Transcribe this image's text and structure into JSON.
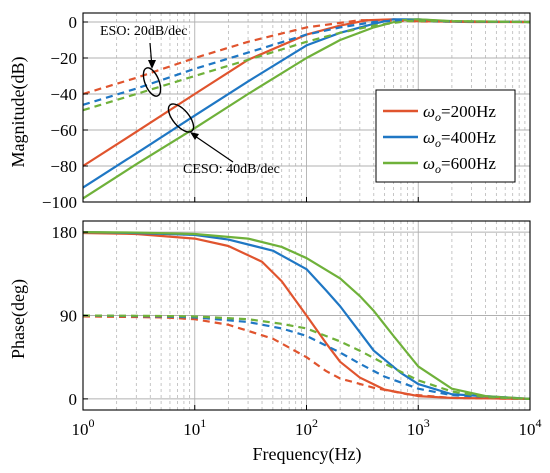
{
  "chart_data": [
    {
      "type": "line",
      "panel": "magnitude",
      "ylabel": "Magnitude(dB)",
      "xscale": "log",
      "xlim": [
        1,
        10000
      ],
      "ylim": [
        -100,
        5
      ],
      "yticks": [
        0,
        -20,
        -40,
        -60,
        -80,
        -100
      ],
      "ytick_labels": [
        "0",
        "−20",
        "−40",
        "−60",
        "−80",
        "−100"
      ],
      "grid": true,
      "legend_position": "center-right",
      "series": [
        {
          "name": "ωo=200Hz",
          "style": "solid",
          "color": "#e0542e",
          "points": [
            [
              1,
              -80
            ],
            [
              3,
              -61
            ],
            [
              10,
              -40
            ],
            [
              30,
              -21
            ],
            [
              100,
              -7
            ],
            [
              200,
              -2
            ],
            [
              350,
              1
            ],
            [
              600,
              1.5
            ],
            [
              1000,
              0.5
            ],
            [
              3000,
              0
            ],
            [
              10000,
              0
            ]
          ]
        },
        {
          "name": "ωo=400Hz",
          "style": "solid",
          "color": "#1f77c4",
          "points": [
            [
              1,
              -92
            ],
            [
              3,
              -73
            ],
            [
              10,
              -52
            ],
            [
              30,
              -33
            ],
            [
              100,
              -13
            ],
            [
              200,
              -6
            ],
            [
              400,
              -1
            ],
            [
              600,
              1.5
            ],
            [
              1000,
              1.5
            ],
            [
              2000,
              0.3
            ],
            [
              10000,
              0
            ]
          ]
        },
        {
          "name": "ωo=600Hz",
          "style": "solid",
          "color": "#6fb13a",
          "points": [
            [
              1,
              -98
            ],
            [
              3,
              -79
            ],
            [
              10,
              -59
            ],
            [
              30,
              -40
            ],
            [
              100,
              -20
            ],
            [
              200,
              -10
            ],
            [
              400,
              -3
            ],
            [
              700,
              1
            ],
            [
              1000,
              1.5
            ],
            [
              2000,
              0.5
            ],
            [
              10000,
              0
            ]
          ]
        },
        {
          "name": "ESO ωo=200Hz",
          "style": "dashed",
          "color": "#e0542e",
          "points": [
            [
              1,
              -40
            ],
            [
              3,
              -31
            ],
            [
              10,
              -20
            ],
            [
              30,
              -11
            ],
            [
              100,
              -3
            ],
            [
              200,
              -0.5
            ],
            [
              300,
              1
            ],
            [
              500,
              1
            ],
            [
              1000,
              0.3
            ],
            [
              10000,
              0
            ]
          ]
        },
        {
          "name": "ESO ωo=400Hz",
          "style": "dashed",
          "color": "#1f77c4",
          "points": [
            [
              1,
              -46
            ],
            [
              3,
              -37
            ],
            [
              10,
              -26
            ],
            [
              30,
              -17
            ],
            [
              100,
              -7
            ],
            [
              200,
              -3
            ],
            [
              400,
              0
            ],
            [
              700,
              1
            ],
            [
              1500,
              0.3
            ],
            [
              10000,
              0
            ]
          ]
        },
        {
          "name": "ESO ωo=600Hz",
          "style": "dashed",
          "color": "#6fb13a",
          "points": [
            [
              1,
              -49
            ],
            [
              3,
              -40
            ],
            [
              10,
              -30
            ],
            [
              30,
              -21
            ],
            [
              100,
              -11
            ],
            [
              200,
              -6
            ],
            [
              400,
              -2
            ],
            [
              800,
              0.5
            ],
            [
              1500,
              0.5
            ],
            [
              10000,
              0
            ]
          ]
        }
      ],
      "annotations": {
        "eso": "ESO: 20dB/dec",
        "ceso": "CESO: 40dB/dec"
      }
    },
    {
      "type": "line",
      "panel": "phase",
      "ylabel": "Phase(deg)",
      "xlabel": "Frequency(Hz)",
      "xscale": "log",
      "xlim": [
        1,
        10000
      ],
      "ylim": [
        -12,
        192
      ],
      "yticks": [
        180,
        90,
        0
      ],
      "ytick_labels": [
        "180",
        "90",
        "0"
      ],
      "grid": true,
      "series": [
        {
          "name": "ωo=200Hz",
          "style": "solid",
          "color": "#e0542e",
          "points": [
            [
              1,
              179
            ],
            [
              3,
              178
            ],
            [
              10,
              173
            ],
            [
              20,
              165
            ],
            [
              40,
              148
            ],
            [
              60,
              127
            ],
            [
              100,
              90
            ],
            [
              150,
              60
            ],
            [
              200,
              40
            ],
            [
              300,
              23
            ],
            [
              500,
              10
            ],
            [
              1000,
              3
            ],
            [
              2000,
              1
            ],
            [
              10000,
              0
            ]
          ]
        },
        {
          "name": "ωo=400Hz",
          "style": "solid",
          "color": "#1f77c4",
          "points": [
            [
              1,
              180
            ],
            [
              3,
              179
            ],
            [
              10,
              177
            ],
            [
              20,
              172
            ],
            [
              50,
              160
            ],
            [
              100,
              140
            ],
            [
              150,
              117
            ],
            [
              200,
              100
            ],
            [
              300,
              72
            ],
            [
              400,
              52
            ],
            [
              700,
              28
            ],
            [
              1000,
              16
            ],
            [
              2000,
              5
            ],
            [
              10000,
              0
            ]
          ]
        },
        {
          "name": "ωo=600Hz",
          "style": "solid",
          "color": "#6fb13a",
          "points": [
            [
              1,
              180
            ],
            [
              3,
              179.5
            ],
            [
              10,
              178
            ],
            [
              30,
              173
            ],
            [
              60,
              164
            ],
            [
              100,
              152
            ],
            [
              200,
              130
            ],
            [
              300,
              111
            ],
            [
              400,
              95
            ],
            [
              600,
              68
            ],
            [
              1000,
              35
            ],
            [
              2000,
              11
            ],
            [
              4000,
              3
            ],
            [
              10000,
              0
            ]
          ]
        },
        {
          "name": "ESO ωo=200Hz",
          "style": "dashed",
          "color": "#e0542e",
          "points": [
            [
              1,
              89
            ],
            [
              5,
              88
            ],
            [
              10,
              86
            ],
            [
              20,
              80
            ],
            [
              50,
              65
            ],
            [
              100,
              45
            ],
            [
              150,
              30
            ],
            [
              200,
              22
            ],
            [
              400,
              12
            ],
            [
              800,
              5
            ],
            [
              2000,
              1
            ],
            [
              10000,
              0
            ]
          ]
        },
        {
          "name": "ESO ωo=400Hz",
          "style": "dashed",
          "color": "#1f77c4",
          "points": [
            [
              1,
              90
            ],
            [
              5,
              89
            ],
            [
              10,
              88
            ],
            [
              30,
              83
            ],
            [
              60,
              76
            ],
            [
              100,
              68
            ],
            [
              200,
              50
            ],
            [
              300,
              38
            ],
            [
              500,
              24
            ],
            [
              1000,
              11
            ],
            [
              2000,
              4
            ],
            [
              10000,
              0
            ]
          ]
        },
        {
          "name": "ESO ωo=600Hz",
          "style": "dashed",
          "color": "#6fb13a",
          "points": [
            [
              1,
              90
            ],
            [
              5,
              89.5
            ],
            [
              10,
              89
            ],
            [
              30,
              86
            ],
            [
              60,
              81
            ],
            [
              100,
              76
            ],
            [
              200,
              62
            ],
            [
              300,
              52
            ],
            [
              500,
              38
            ],
            [
              1000,
              20
            ],
            [
              2000,
              8
            ],
            [
              4000,
              2
            ],
            [
              10000,
              0
            ]
          ]
        }
      ]
    }
  ],
  "xtick_labels": [
    {
      "base": "10",
      "exp": "0"
    },
    {
      "base": "10",
      "exp": "1"
    },
    {
      "base": "10",
      "exp": "2"
    },
    {
      "base": "10",
      "exp": "3"
    },
    {
      "base": "10",
      "exp": "4"
    }
  ],
  "legend": [
    {
      "symbol": "ω",
      "sub": "o",
      "text": "=200Hz",
      "color": "#e0542e"
    },
    {
      "symbol": "ω",
      "sub": "o",
      "text": "=400Hz",
      "color": "#1f77c4"
    },
    {
      "symbol": "ω",
      "sub": "o",
      "text": "=600Hz",
      "color": "#6fb13a"
    }
  ]
}
